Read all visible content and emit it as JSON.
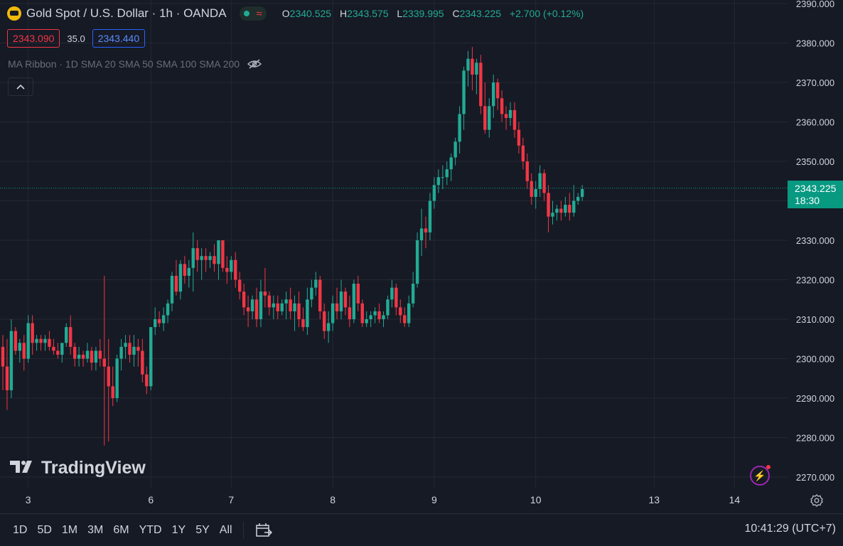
{
  "header": {
    "symbol_title": "Gold Spot / U.S. Dollar · 1h · OANDA",
    "ohlc": [
      {
        "key": "O",
        "value": "2340.525"
      },
      {
        "key": "H",
        "value": "2343.575"
      },
      {
        "key": "L",
        "value": "2339.995"
      },
      {
        "key": "C",
        "value": "2343.225"
      }
    ],
    "change": "+2.700 (+0.12%)"
  },
  "trade": {
    "bid": "2343.090",
    "spread": "35.0",
    "ask": "2343.440"
  },
  "indicator": {
    "label": "MA Ribbon · 1D SMA 20 SMA 50 SMA 100 SMA 200"
  },
  "logo_text": "TradingView",
  "price_label": {
    "price": "2343.225",
    "countdown": "18:30"
  },
  "toolbar": {
    "ranges": [
      "1D",
      "5D",
      "1M",
      "3M",
      "6M",
      "YTD",
      "1Y",
      "5Y",
      "All"
    ],
    "clock": "10:41:29 (UTC+7)"
  },
  "colors": {
    "up": "#22AB94",
    "down": "#F23645",
    "background": "#161A25",
    "grid": "#242832",
    "price_line": "#089981",
    "text": "#D1D4DC"
  },
  "chart_data": {
    "type": "candlestick",
    "y_axis": {
      "min": 2265,
      "max": 2390,
      "ticks": [
        2270,
        2280,
        2290,
        2300,
        2310,
        2320,
        2330,
        2340,
        2350,
        2360,
        2370,
        2380,
        2390
      ],
      "tick_labels": [
        "2270.000",
        "2280.000",
        "2290.000",
        "2300.000",
        "2310.000",
        "2320.000",
        "2330.000",
        "2340.000",
        "2350.000",
        "2360.000",
        "2370.000",
        "2380.000",
        "2390.000"
      ]
    },
    "x_ticks": [
      {
        "label": "3",
        "bar": 6
      },
      {
        "label": "6",
        "bar": 35
      },
      {
        "label": "7",
        "bar": 54
      },
      {
        "label": "8",
        "bar": 78
      },
      {
        "label": "9",
        "bar": 102
      },
      {
        "label": "10",
        "bar": 126
      },
      {
        "label": "13",
        "bar": 154
      },
      {
        "label": "14",
        "bar": 173
      }
    ],
    "last_price": 2343.225,
    "candles": [
      [
        2303,
        2306,
        2292,
        2298
      ],
      [
        2298,
        2305,
        2287,
        2292
      ],
      [
        2292,
        2310,
        2290,
        2307
      ],
      [
        2307,
        2308,
        2301,
        2302
      ],
      [
        2302,
        2305,
        2299,
        2304
      ],
      [
        2304,
        2306,
        2297,
        2300
      ],
      [
        2300,
        2311,
        2299,
        2309
      ],
      [
        2309,
        2311,
        2301,
        2304
      ],
      [
        2304,
        2306,
        2302,
        2305
      ],
      [
        2305,
        2306,
        2302,
        2304
      ],
      [
        2304,
        2306,
        2302,
        2305
      ],
      [
        2305,
        2307,
        2302,
        2303
      ],
      [
        2303,
        2305,
        2301,
        2302
      ],
      [
        2302,
        2304,
        2300,
        2301
      ],
      [
        2301,
        2303,
        2299,
        2304
      ],
      [
        2304,
        2309,
        2303,
        2308
      ],
      [
        2308,
        2311,
        2301,
        2303
      ],
      [
        2303,
        2304,
        2298,
        2300
      ],
      [
        2300,
        2303,
        2298,
        2301
      ],
      [
        2301,
        2302,
        2298,
        2300
      ],
      [
        2300,
        2304,
        2299,
        2302
      ],
      [
        2302,
        2303,
        2297,
        2299
      ],
      [
        2299,
        2303,
        2297,
        2302
      ],
      [
        2302,
        2305,
        2298,
        2300
      ],
      [
        2300,
        2321,
        2278,
        2298
      ],
      [
        2298,
        2305,
        2279,
        2293
      ],
      [
        2293,
        2298,
        2288,
        2290
      ],
      [
        2290,
        2301,
        2289,
        2300
      ],
      [
        2300,
        2305,
        2297,
        2303
      ],
      [
        2303,
        2306,
        2300,
        2304
      ],
      [
        2304,
        2306,
        2299,
        2301
      ],
      [
        2301,
        2306,
        2298,
        2303
      ],
      [
        2303,
        2305,
        2298,
        2302
      ],
      [
        2302,
        2305,
        2294,
        2296
      ],
      [
        2296,
        2298,
        2291,
        2293
      ],
      [
        2293,
        2307,
        2292,
        2308
      ],
      [
        2308,
        2313,
        2306,
        2310
      ],
      [
        2310,
        2312,
        2308,
        2309
      ],
      [
        2309,
        2313,
        2307,
        2311
      ],
      [
        2311,
        2315,
        2309,
        2314
      ],
      [
        2314,
        2322,
        2312,
        2321
      ],
      [
        2321,
        2325,
        2316,
        2317
      ],
      [
        2317,
        2325,
        2315,
        2324
      ],
      [
        2324,
        2326,
        2319,
        2321
      ],
      [
        2321,
        2325,
        2318,
        2323
      ],
      [
        2323,
        2332,
        2317,
        2328
      ],
      [
        2328,
        2330,
        2322,
        2325
      ],
      [
        2325,
        2328,
        2320,
        2326
      ],
      [
        2326,
        2328,
        2322,
        2325
      ],
      [
        2325,
        2327,
        2323,
        2326
      ],
      [
        2326,
        2329,
        2322,
        2324
      ],
      [
        2324,
        2330,
        2320,
        2330
      ],
      [
        2330,
        2330,
        2322,
        2323
      ],
      [
        2323,
        2326,
        2319,
        2322
      ],
      [
        2322,
        2326,
        2320,
        2325
      ],
      [
        2325,
        2327,
        2318,
        2320
      ],
      [
        2320,
        2322,
        2315,
        2317
      ],
      [
        2317,
        2319,
        2311,
        2313
      ],
      [
        2313,
        2316,
        2308,
        2312
      ],
      [
        2312,
        2316,
        2310,
        2315
      ],
      [
        2315,
        2318,
        2308,
        2310
      ],
      [
        2310,
        2320,
        2308,
        2317
      ],
      [
        2317,
        2323,
        2313,
        2316
      ],
      [
        2316,
        2317,
        2311,
        2313
      ],
      [
        2313,
        2316,
        2310,
        2314
      ],
      [
        2314,
        2316,
        2310,
        2312
      ],
      [
        2312,
        2315,
        2311,
        2314
      ],
      [
        2314,
        2317,
        2310,
        2315
      ],
      [
        2315,
        2318,
        2310,
        2312
      ],
      [
        2312,
        2316,
        2307,
        2314
      ],
      [
        2314,
        2317,
        2308,
        2310
      ],
      [
        2310,
        2313,
        2307,
        2308
      ],
      [
        2308,
        2318,
        2306,
        2315
      ],
      [
        2315,
        2320,
        2313,
        2318
      ],
      [
        2318,
        2322,
        2316,
        2320
      ],
      [
        2320,
        2321,
        2310,
        2312
      ],
      [
        2312,
        2314,
        2305,
        2307
      ],
      [
        2307,
        2312,
        2304,
        2309
      ],
      [
        2309,
        2316,
        2307,
        2314
      ],
      [
        2314,
        2318,
        2310,
        2312
      ],
      [
        2312,
        2320,
        2310,
        2317
      ],
      [
        2317,
        2318,
        2311,
        2313
      ],
      [
        2313,
        2316,
        2308,
        2310
      ],
      [
        2310,
        2320,
        2309,
        2319
      ],
      [
        2319,
        2321,
        2312,
        2314
      ],
      [
        2314,
        2315,
        2308,
        2309
      ],
      [
        2309,
        2312,
        2308,
        2310
      ],
      [
        2310,
        2312,
        2308,
        2311
      ],
      [
        2311,
        2313,
        2309,
        2312
      ],
      [
        2312,
        2314,
        2309,
        2310
      ],
      [
        2310,
        2312,
        2308,
        2311
      ],
      [
        2311,
        2316,
        2310,
        2315
      ],
      [
        2315,
        2320,
        2313,
        2318
      ],
      [
        2318,
        2319,
        2311,
        2313
      ],
      [
        2313,
        2315,
        2309,
        2311
      ],
      [
        2311,
        2313,
        2308,
        2309
      ],
      [
        2309,
        2316,
        2308,
        2314
      ],
      [
        2314,
        2322,
        2313,
        2319
      ],
      [
        2319,
        2332,
        2318,
        2330
      ],
      [
        2330,
        2338,
        2326,
        2333
      ],
      [
        2333,
        2336,
        2328,
        2332
      ],
      [
        2332,
        2342,
        2330,
        2340
      ],
      [
        2340,
        2346,
        2338,
        2344
      ],
      [
        2344,
        2348,
        2342,
        2346
      ],
      [
        2346,
        2349,
        2343,
        2346
      ],
      [
        2346,
        2350,
        2344,
        2348
      ],
      [
        2348,
        2352,
        2345,
        2351
      ],
      [
        2351,
        2356,
        2349,
        2355
      ],
      [
        2355,
        2364,
        2352,
        2362
      ],
      [
        2362,
        2374,
        2358,
        2373
      ],
      [
        2373,
        2378,
        2369,
        2376
      ],
      [
        2376,
        2379,
        2368,
        2372
      ],
      [
        2372,
        2376,
        2367,
        2375
      ],
      [
        2375,
        2377,
        2362,
        2364
      ],
      [
        2364,
        2370,
        2357,
        2358
      ],
      [
        2358,
        2366,
        2356,
        2364
      ],
      [
        2364,
        2372,
        2361,
        2370
      ],
      [
        2370,
        2371,
        2363,
        2366
      ],
      [
        2366,
        2368,
        2360,
        2362
      ],
      [
        2362,
        2364,
        2358,
        2361
      ],
      [
        2361,
        2365,
        2359,
        2363
      ],
      [
        2363,
        2365,
        2356,
        2358
      ],
      [
        2358,
        2360,
        2352,
        2354
      ],
      [
        2354,
        2356,
        2348,
        2350
      ],
      [
        2350,
        2352,
        2343,
        2345
      ],
      [
        2345,
        2347,
        2339,
        2341
      ],
      [
        2341,
        2345,
        2338,
        2343
      ],
      [
        2343,
        2349,
        2341,
        2347
      ],
      [
        2347,
        2348,
        2340,
        2342
      ],
      [
        2342,
        2344,
        2332,
        2336
      ],
      [
        2336,
        2340,
        2334,
        2337
      ],
      [
        2337,
        2339,
        2335,
        2338
      ],
      [
        2338,
        2340,
        2335,
        2337
      ],
      [
        2337,
        2341,
        2336,
        2339
      ],
      [
        2339,
        2342,
        2335,
        2337
      ],
      [
        2337,
        2344,
        2336,
        2340
      ],
      [
        2340,
        2342,
        2339,
        2341
      ],
      [
        2341,
        2344,
        2340,
        2343
      ]
    ]
  }
}
